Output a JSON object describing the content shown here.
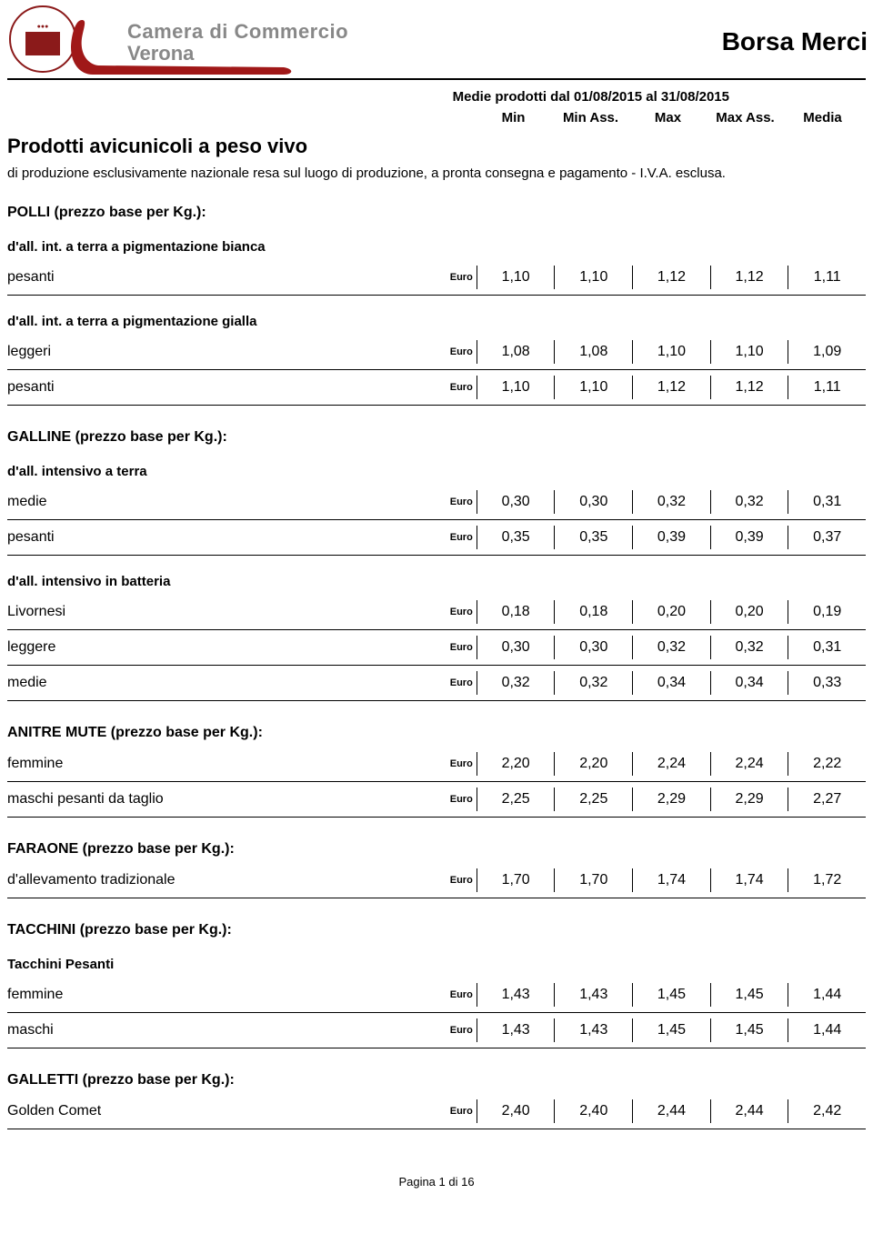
{
  "header": {
    "org_line1": "Camera di Commercio",
    "org_line2": "Verona",
    "title": "Borsa Merci",
    "seal_color": "#8b1a1a",
    "swoosh_color": "#a01818"
  },
  "date_line": "Medie prodotti dal 01/08/2015 al 31/08/2015",
  "columns": [
    "Min",
    "Min Ass.",
    "Max",
    "Max Ass.",
    "Media"
  ],
  "currency": "Euro",
  "section": {
    "title": "Prodotti avicunicoli a peso vivo",
    "desc": "di produzione esclusivamente nazionale resa sul luogo di produzione, a pronta consegna e pagamento - I.V.A. esclusa."
  },
  "groups": [
    {
      "title": "POLLI (prezzo base per Kg.):",
      "subgroups": [
        {
          "title": "d'all. int. a terra a pigmentazione bianca",
          "rows": [
            {
              "label": "pesanti",
              "v": [
                "1,10",
                "1,10",
                "1,12",
                "1,12",
                "1,11"
              ]
            }
          ]
        },
        {
          "title": "d'all. int. a terra a pigmentazione gialla",
          "rows": [
            {
              "label": "leggeri",
              "v": [
                "1,08",
                "1,08",
                "1,10",
                "1,10",
                "1,09"
              ]
            },
            {
              "label": "pesanti",
              "v": [
                "1,10",
                "1,10",
                "1,12",
                "1,12",
                "1,11"
              ]
            }
          ]
        }
      ]
    },
    {
      "title": "GALLINE (prezzo base per Kg.):",
      "subgroups": [
        {
          "title": "d'all. intensivo a terra",
          "rows": [
            {
              "label": "medie",
              "v": [
                "0,30",
                "0,30",
                "0,32",
                "0,32",
                "0,31"
              ]
            },
            {
              "label": "pesanti",
              "v": [
                "0,35",
                "0,35",
                "0,39",
                "0,39",
                "0,37"
              ]
            }
          ]
        },
        {
          "title": "d'all. intensivo in batteria",
          "rows": [
            {
              "label": "Livornesi",
              "v": [
                "0,18",
                "0,18",
                "0,20",
                "0,20",
                "0,19"
              ]
            },
            {
              "label": "leggere",
              "v": [
                "0,30",
                "0,30",
                "0,32",
                "0,32",
                "0,31"
              ]
            },
            {
              "label": "medie",
              "v": [
                "0,32",
                "0,32",
                "0,34",
                "0,34",
                "0,33"
              ]
            }
          ]
        }
      ]
    },
    {
      "title": "ANITRE MUTE (prezzo base per Kg.):",
      "subgroups": [
        {
          "title": "",
          "rows": [
            {
              "label": "femmine",
              "v": [
                "2,20",
                "2,20",
                "2,24",
                "2,24",
                "2,22"
              ]
            },
            {
              "label": "maschi pesanti da taglio",
              "v": [
                "2,25",
                "2,25",
                "2,29",
                "2,29",
                "2,27"
              ]
            }
          ]
        }
      ]
    },
    {
      "title": "FARAONE (prezzo base per Kg.):",
      "subgroups": [
        {
          "title": "",
          "rows": [
            {
              "label": "d'allevamento tradizionale",
              "v": [
                "1,70",
                "1,70",
                "1,74",
                "1,74",
                "1,72"
              ]
            }
          ]
        }
      ]
    },
    {
      "title": "TACCHINI (prezzo base per Kg.):",
      "subgroups": [
        {
          "title": "Tacchini Pesanti",
          "rows": [
            {
              "label": "femmine",
              "v": [
                "1,43",
                "1,43",
                "1,45",
                "1,45",
                "1,44"
              ]
            },
            {
              "label": "maschi",
              "v": [
                "1,43",
                "1,43",
                "1,45",
                "1,45",
                "1,44"
              ]
            }
          ]
        }
      ]
    },
    {
      "title": "GALLETTI (prezzo base per Kg.):",
      "subgroups": [
        {
          "title": "",
          "rows": [
            {
              "label": "Golden Comet",
              "v": [
                "2,40",
                "2,40",
                "2,44",
                "2,44",
                "2,42"
              ]
            }
          ]
        }
      ]
    }
  ],
  "footer": "Pagina 1 di 16"
}
